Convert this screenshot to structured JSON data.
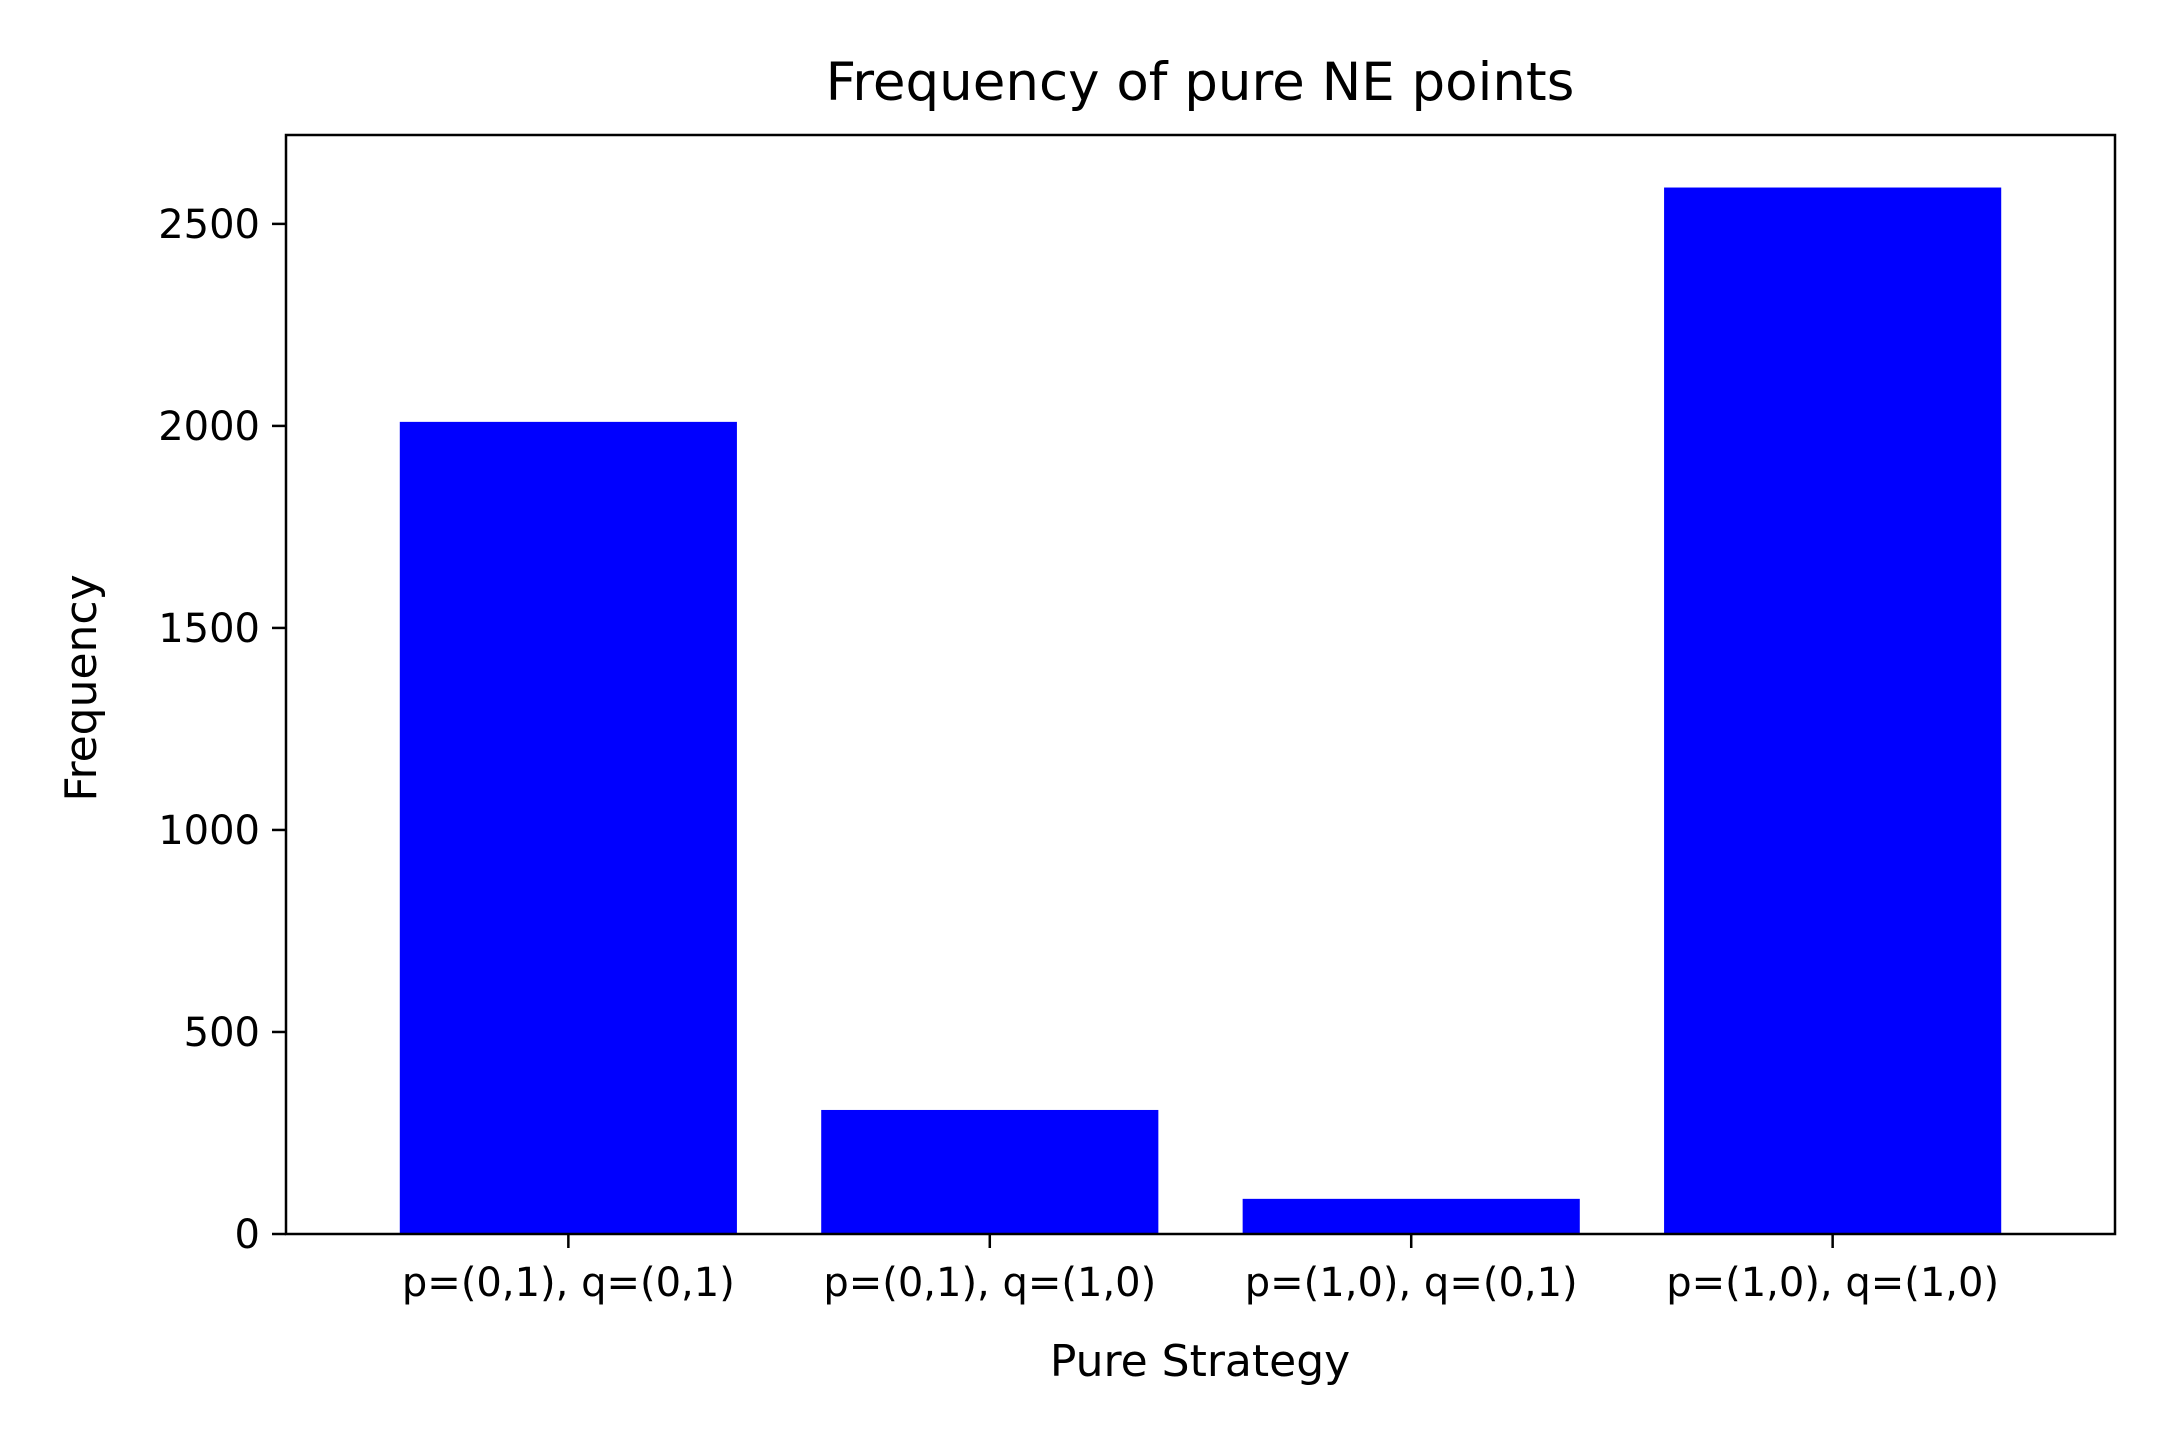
{
  "chart_data": {
    "type": "bar",
    "title": "Frequency of pure NE points",
    "xlabel": "Pure Strategy",
    "ylabel": "Frequency",
    "categories": [
      "p=(0,1), q=(0,1)",
      "p=(0,1), q=(1,0)",
      "p=(1,0), q=(0,1)",
      "p=(1,0), q=(1,0)"
    ],
    "values": [
      2010,
      307,
      87,
      2590
    ],
    "ylim": [
      0,
      2720
    ],
    "yticks": [
      0,
      500,
      1000,
      1500,
      2000,
      2500
    ],
    "bar_color": "#0000ff",
    "grid": false
  }
}
